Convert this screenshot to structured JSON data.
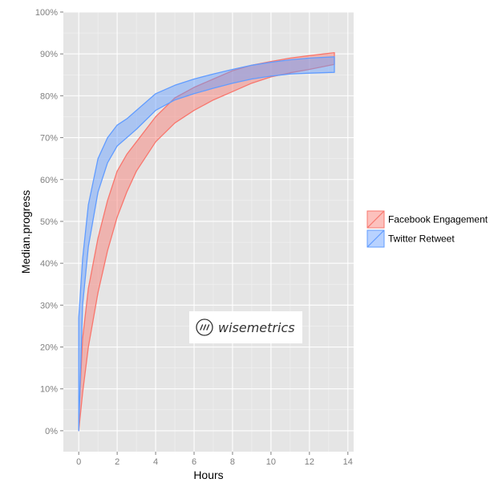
{
  "chart_data": {
    "type": "area",
    "xlabel": "Hours",
    "ylabel": "Median.progress",
    "x_ticks": [
      0,
      2,
      4,
      6,
      8,
      10,
      12,
      14
    ],
    "y_ticks": [
      0,
      10,
      20,
      30,
      40,
      50,
      60,
      70,
      80,
      90,
      100
    ],
    "y_tick_format": "percent",
    "xlim": [
      -0.8,
      14.3
    ],
    "ylim": [
      -5,
      100
    ],
    "grid": true,
    "legend_position": "right",
    "series": [
      {
        "name": "Facebook Engagement",
        "color": "#f8766d",
        "x": [
          0,
          0.2,
          0.5,
          1,
          1.5,
          2,
          2.5,
          3,
          4,
          5,
          6,
          7,
          8,
          9,
          10,
          11,
          12,
          13.3
        ],
        "upper": [
          3,
          22,
          34,
          46,
          55,
          62,
          66,
          69,
          75,
          79.5,
          82,
          84,
          86,
          87.3,
          88.2,
          89,
          89.6,
          90.3
        ],
        "lower": [
          0,
          9,
          20,
          33,
          43,
          51,
          57,
          62,
          69,
          73.5,
          76.5,
          79,
          81,
          83,
          84.5,
          85.5,
          86.3,
          87.5
        ]
      },
      {
        "name": "Twitter Retweet",
        "color": "#619cff",
        "x": [
          0,
          0.2,
          0.5,
          1,
          1.5,
          2,
          2.5,
          3,
          4,
          5,
          6,
          7,
          8,
          9,
          10,
          11,
          12,
          13.3
        ],
        "upper": [
          27,
          41,
          54,
          65,
          70,
          73,
          74.5,
          76.5,
          80.5,
          82.5,
          84,
          85.2,
          86.3,
          87.3,
          88,
          88.6,
          89,
          89.3
        ],
        "lower": [
          0,
          30,
          44,
          57,
          64,
          68,
          70,
          72,
          76.5,
          79,
          80.5,
          81.8,
          83,
          84,
          84.7,
          85.2,
          85.4,
          85.6
        ]
      }
    ],
    "watermark": "wisemetrics"
  }
}
